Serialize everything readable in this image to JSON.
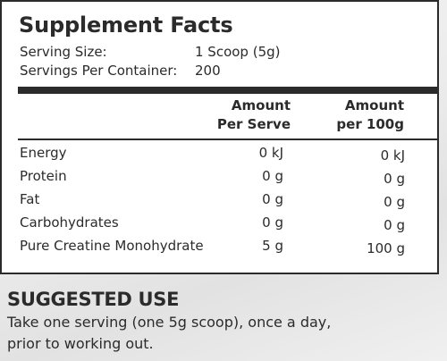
{
  "title": "Supplement Facts",
  "serving": {
    "size_label": "Serving Size:",
    "size_value": "1 Scoop (5g)",
    "per_container_label": "Servings Per Container:",
    "per_container_value": "200"
  },
  "columns": {
    "per_serve_line1": "Amount",
    "per_serve_line2": "Per Serve",
    "per_100g_line1": "Amount",
    "per_100g_line2": "per 100g"
  },
  "nutrients": [
    {
      "name": "Energy",
      "per_serve": "0 kJ",
      "per_100g": "0 kJ"
    },
    {
      "name": "Protein",
      "per_serve": "0 g",
      "per_100g": "0 g"
    },
    {
      "name": "Fat",
      "per_serve": "0 g",
      "per_100g": "0 g"
    },
    {
      "name": "Carbohydrates",
      "per_serve": "0 g",
      "per_100g": "0 g"
    },
    {
      "name": "Pure Creatine Monohydrate",
      "per_serve": "5 g",
      "per_100g": "100 g"
    }
  ],
  "suggested_use": {
    "title": "SUGGESTED USE",
    "line1": "Take one serving (one 5g scoop), once a day,",
    "line2": "prior to working out."
  }
}
